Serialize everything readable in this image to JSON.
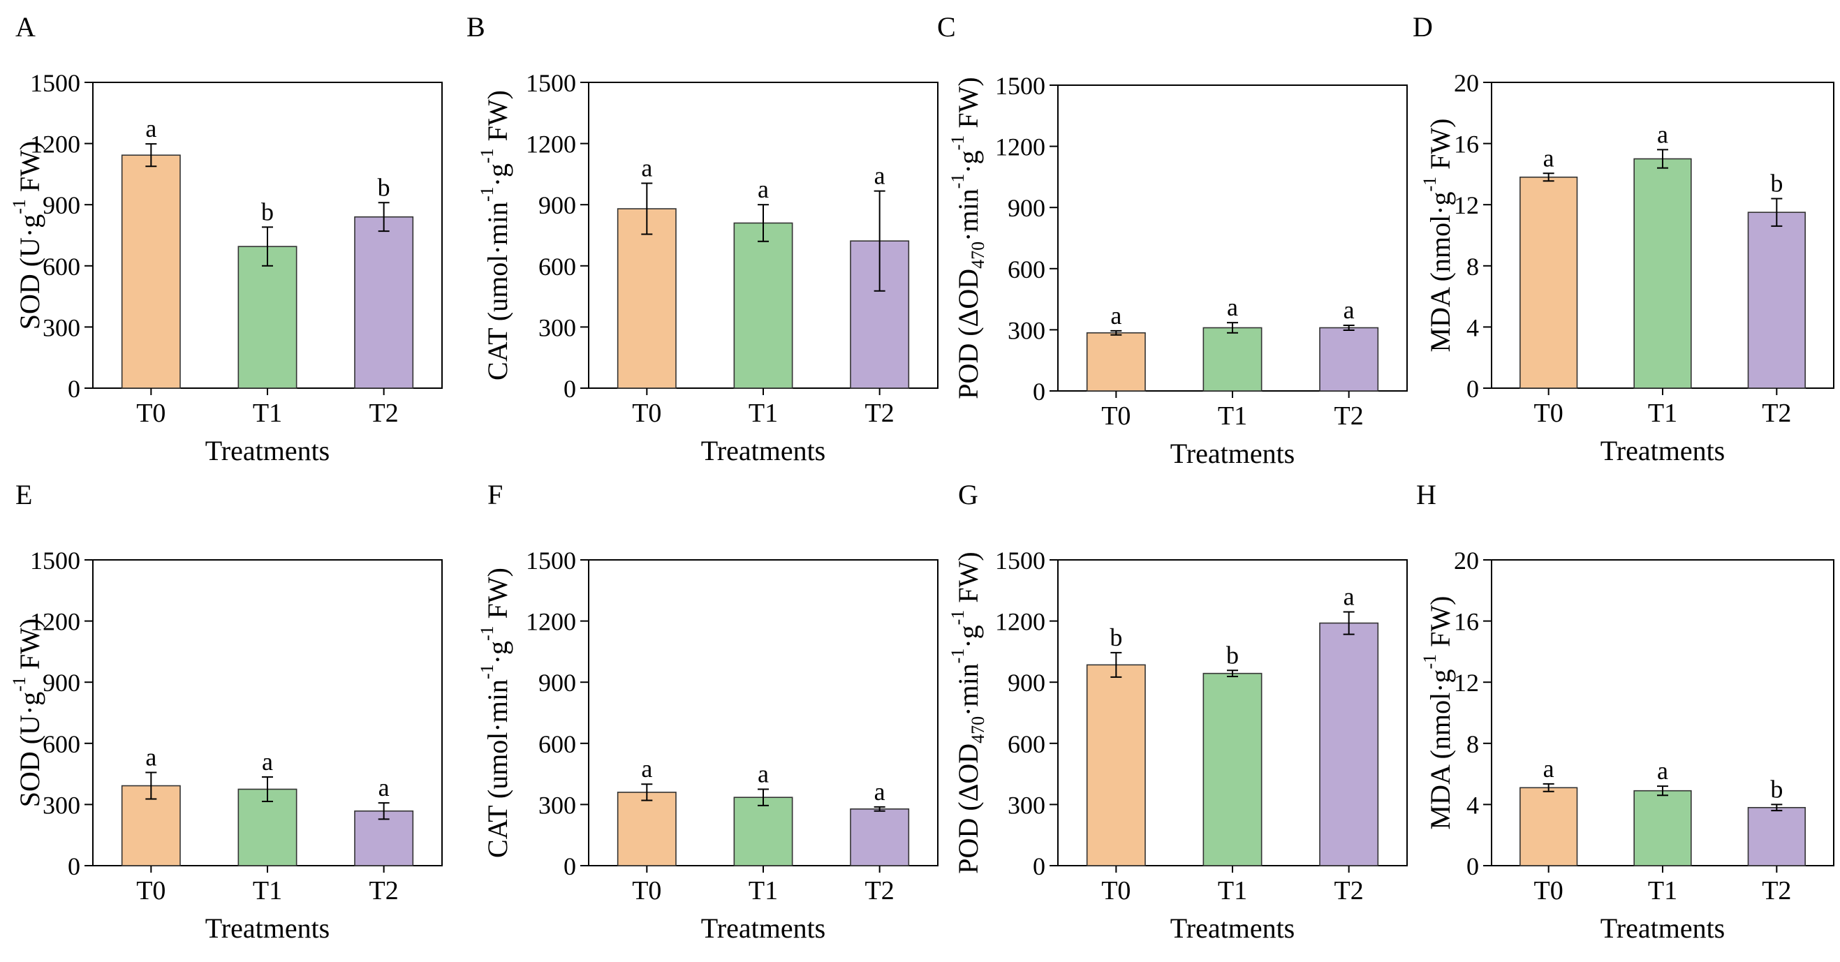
{
  "colors": {
    "T0": "#F5C494",
    "T1": "#99D09A",
    "T2": "#BBAAD4"
  },
  "chart_data": [
    {
      "type": "bar",
      "panel": "A",
      "ylabel": "SOD (U·g⁻¹ FW)",
      "ylabel_parts": [
        [
          "SOD (U·g"
        ],
        [
          "-1",
          "sup"
        ],
        [
          " FW)"
        ]
      ],
      "xlabel": "Treatments",
      "categories": [
        "T0",
        "T1",
        "T2"
      ],
      "values": [
        1143,
        695,
        840
      ],
      "errors": [
        55,
        95,
        70
      ],
      "letters": [
        "a",
        "b",
        "b"
      ],
      "ylim": [
        0,
        1500
      ],
      "yticks": [
        0,
        300,
        600,
        900,
        1200,
        1500
      ],
      "ytick_labels": [
        "0",
        "300",
        "600",
        "900",
        "1200",
        "1500"
      ]
    },
    {
      "type": "bar",
      "panel": "B",
      "ylabel": "CAT (umol·min⁻¹·g⁻¹ FW)",
      "ylabel_parts": [
        [
          "CAT (umol·min"
        ],
        [
          "-1",
          "sup"
        ],
        [
          "·g"
        ],
        [
          "-1",
          "sup"
        ],
        [
          " FW)"
        ]
      ],
      "xlabel": "Treatments",
      "categories": [
        "T0",
        "T1",
        "T2"
      ],
      "values": [
        880,
        810,
        722
      ],
      "errors": [
        125,
        90,
        245
      ],
      "letters": [
        "a",
        "a",
        "a"
      ],
      "ylim": [
        0,
        1500
      ],
      "yticks": [
        0,
        300,
        600,
        900,
        1200,
        1500
      ],
      "ytick_labels": [
        "0",
        "300",
        "600",
        "900",
        "1200",
        "1500"
      ]
    },
    {
      "type": "bar",
      "panel": "C",
      "ylabel": "POD (ΔOD₄₇₀·min⁻¹·g⁻¹ FW)",
      "ylabel_parts": [
        [
          "POD (ΔOD"
        ],
        [
          "470",
          "sub"
        ],
        [
          "·min"
        ],
        [
          "-1",
          "sup"
        ],
        [
          "·g"
        ],
        [
          "-1",
          "sup"
        ],
        [
          " FW)"
        ]
      ],
      "xlabel": "Treatments",
      "categories": [
        "T0",
        "T1",
        "T2"
      ],
      "values": [
        285,
        310,
        310
      ],
      "errors": [
        10,
        25,
        12
      ],
      "letters": [
        "a",
        "a",
        "a"
      ],
      "ylim": [
        0,
        1500
      ],
      "yticks": [
        0,
        300,
        600,
        900,
        1200,
        1500
      ],
      "ytick_labels": [
        "0",
        "300",
        "600",
        "900",
        "1200",
        "1500"
      ]
    },
    {
      "type": "bar",
      "panel": "D",
      "ylabel": "MDA (nmol·g⁻¹ FW)",
      "ylabel_parts": [
        [
          "MDA (nmol·g"
        ],
        [
          "-1",
          "sup"
        ],
        [
          " FW)"
        ]
      ],
      "xlabel": "Treatments",
      "categories": [
        "T0",
        "T1",
        "T2"
      ],
      "values": [
        13.8,
        15.0,
        11.5
      ],
      "errors": [
        0.25,
        0.6,
        0.9
      ],
      "letters": [
        "a",
        "a",
        "b"
      ],
      "ylim": [
        0,
        20
      ],
      "yticks": [
        0,
        4,
        8,
        12,
        16,
        20
      ],
      "ytick_labels": [
        "0",
        "4",
        "8",
        "12",
        "16",
        "20"
      ]
    },
    {
      "type": "bar",
      "panel": "E",
      "ylabel": "SOD (U·g⁻¹ FW)",
      "ylabel_parts": [
        [
          "SOD (U·g"
        ],
        [
          "-1",
          "sup"
        ],
        [
          " FW)"
        ]
      ],
      "xlabel": "Treatments",
      "categories": [
        "T0",
        "T1",
        "T2"
      ],
      "values": [
        392,
        375,
        268
      ],
      "errors": [
        65,
        60,
        40
      ],
      "letters": [
        "a",
        "a",
        "a"
      ],
      "ylim": [
        0,
        1500
      ],
      "yticks": [
        0,
        300,
        600,
        900,
        1200,
        1500
      ],
      "ytick_labels": [
        "0",
        "300",
        "600",
        "900",
        "1200",
        "1500"
      ]
    },
    {
      "type": "bar",
      "panel": "F",
      "ylabel": "CAT (umol·min⁻¹·g⁻¹ FW)",
      "ylabel_parts": [
        [
          "CAT (umol·min"
        ],
        [
          "-1",
          "sup"
        ],
        [
          "·g"
        ],
        [
          "-1",
          "sup"
        ],
        [
          " FW)"
        ]
      ],
      "xlabel": "Treatments",
      "categories": [
        "T0",
        "T1",
        "T2"
      ],
      "values": [
        360,
        335,
        278
      ],
      "errors": [
        40,
        40,
        10
      ],
      "letters": [
        "a",
        "a",
        "a"
      ],
      "ylim": [
        0,
        1500
      ],
      "yticks": [
        0,
        300,
        600,
        900,
        1200,
        1500
      ],
      "ytick_labels": [
        "0",
        "300",
        "600",
        "900",
        "1200",
        "1500"
      ]
    },
    {
      "type": "bar",
      "panel": "G",
      "ylabel": "POD (ΔOD₄₇₀·min⁻¹·g⁻¹ FW)",
      "ylabel_parts": [
        [
          "POD (ΔOD"
        ],
        [
          "470",
          "sub"
        ],
        [
          "·min"
        ],
        [
          "-1",
          "sup"
        ],
        [
          "·g"
        ],
        [
          "-1",
          "sup"
        ],
        [
          " FW)"
        ]
      ],
      "xlabel": "Treatments",
      "categories": [
        "T0",
        "T1",
        "T2"
      ],
      "values": [
        985,
        943,
        1190
      ],
      "errors": [
        60,
        15,
        55
      ],
      "letters": [
        "b",
        "b",
        "a"
      ],
      "ylim": [
        0,
        1500
      ],
      "yticks": [
        0,
        300,
        600,
        900,
        1200,
        1500
      ],
      "ytick_labels": [
        "0",
        "300",
        "600",
        "900",
        "1200",
        "1500"
      ]
    },
    {
      "type": "bar",
      "panel": "H",
      "ylabel": "MDA (nmol·g⁻¹ FW)",
      "ylabel_parts": [
        [
          "MDA (nmol·g"
        ],
        [
          "-1",
          "sup"
        ],
        [
          " FW)"
        ]
      ],
      "xlabel": "Treatments",
      "categories": [
        "T0",
        "T1",
        "T2"
      ],
      "values": [
        5.1,
        4.9,
        3.8
      ],
      "errors": [
        0.25,
        0.3,
        0.2
      ],
      "letters": [
        "a",
        "a",
        "b"
      ],
      "ylim": [
        0,
        20
      ],
      "yticks": [
        0,
        4,
        8,
        12,
        16,
        20
      ],
      "ytick_labels": [
        "0",
        "4",
        "8",
        "12",
        "16",
        "20"
      ]
    }
  ]
}
